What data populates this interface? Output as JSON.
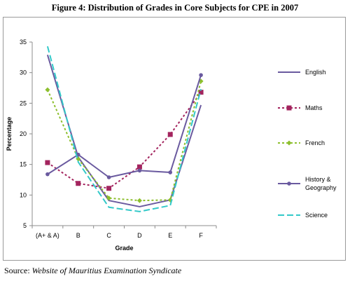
{
  "figure": {
    "title": "Figure 4: Distribution of Grades in Core Subjects for CPE in 2007",
    "source_label": "Source: ",
    "source_value": "Website of Mauritius Examination Syndicate"
  },
  "chart_data": {
    "type": "line",
    "title": "Figure 4: Distribution of Grades in Core Subjects for CPE in 2007",
    "xlabel": "Grade",
    "ylabel": "Percentage",
    "categories": [
      "(A+ & A)",
      "B",
      "C",
      "D",
      "E",
      "F"
    ],
    "ylim": [
      5,
      35
    ],
    "yticks": [
      5,
      10,
      15,
      20,
      25,
      30,
      35
    ],
    "grid": false,
    "legend_position": "right",
    "series": [
      {
        "name": "English",
        "values": [
          32.9,
          16.2,
          9.1,
          8.1,
          9.2,
          24.7
        ],
        "color": "#6a5a9f",
        "style": "solid",
        "marker": "none"
      },
      {
        "name": "Maths",
        "values": [
          15.3,
          11.9,
          11.1,
          14.6,
          19.9,
          26.8
        ],
        "color": "#a3245e",
        "style": "dotted",
        "marker": "square"
      },
      {
        "name": "French",
        "values": [
          27.2,
          15.9,
          9.5,
          9.1,
          9.2,
          28.6
        ],
        "color": "#8dbf2e",
        "style": "dotted",
        "marker": "diamond"
      },
      {
        "name": "History &\nGeography",
        "values": [
          13.4,
          16.6,
          12.9,
          14.0,
          13.7,
          29.6
        ],
        "color": "#6a5a9f",
        "style": "solid",
        "marker": "circle"
      },
      {
        "name": "Science",
        "values": [
          34.3,
          15.4,
          8.0,
          7.3,
          8.3,
          27.3
        ],
        "color": "#33c9c9",
        "style": "dashed",
        "marker": "none"
      }
    ]
  }
}
